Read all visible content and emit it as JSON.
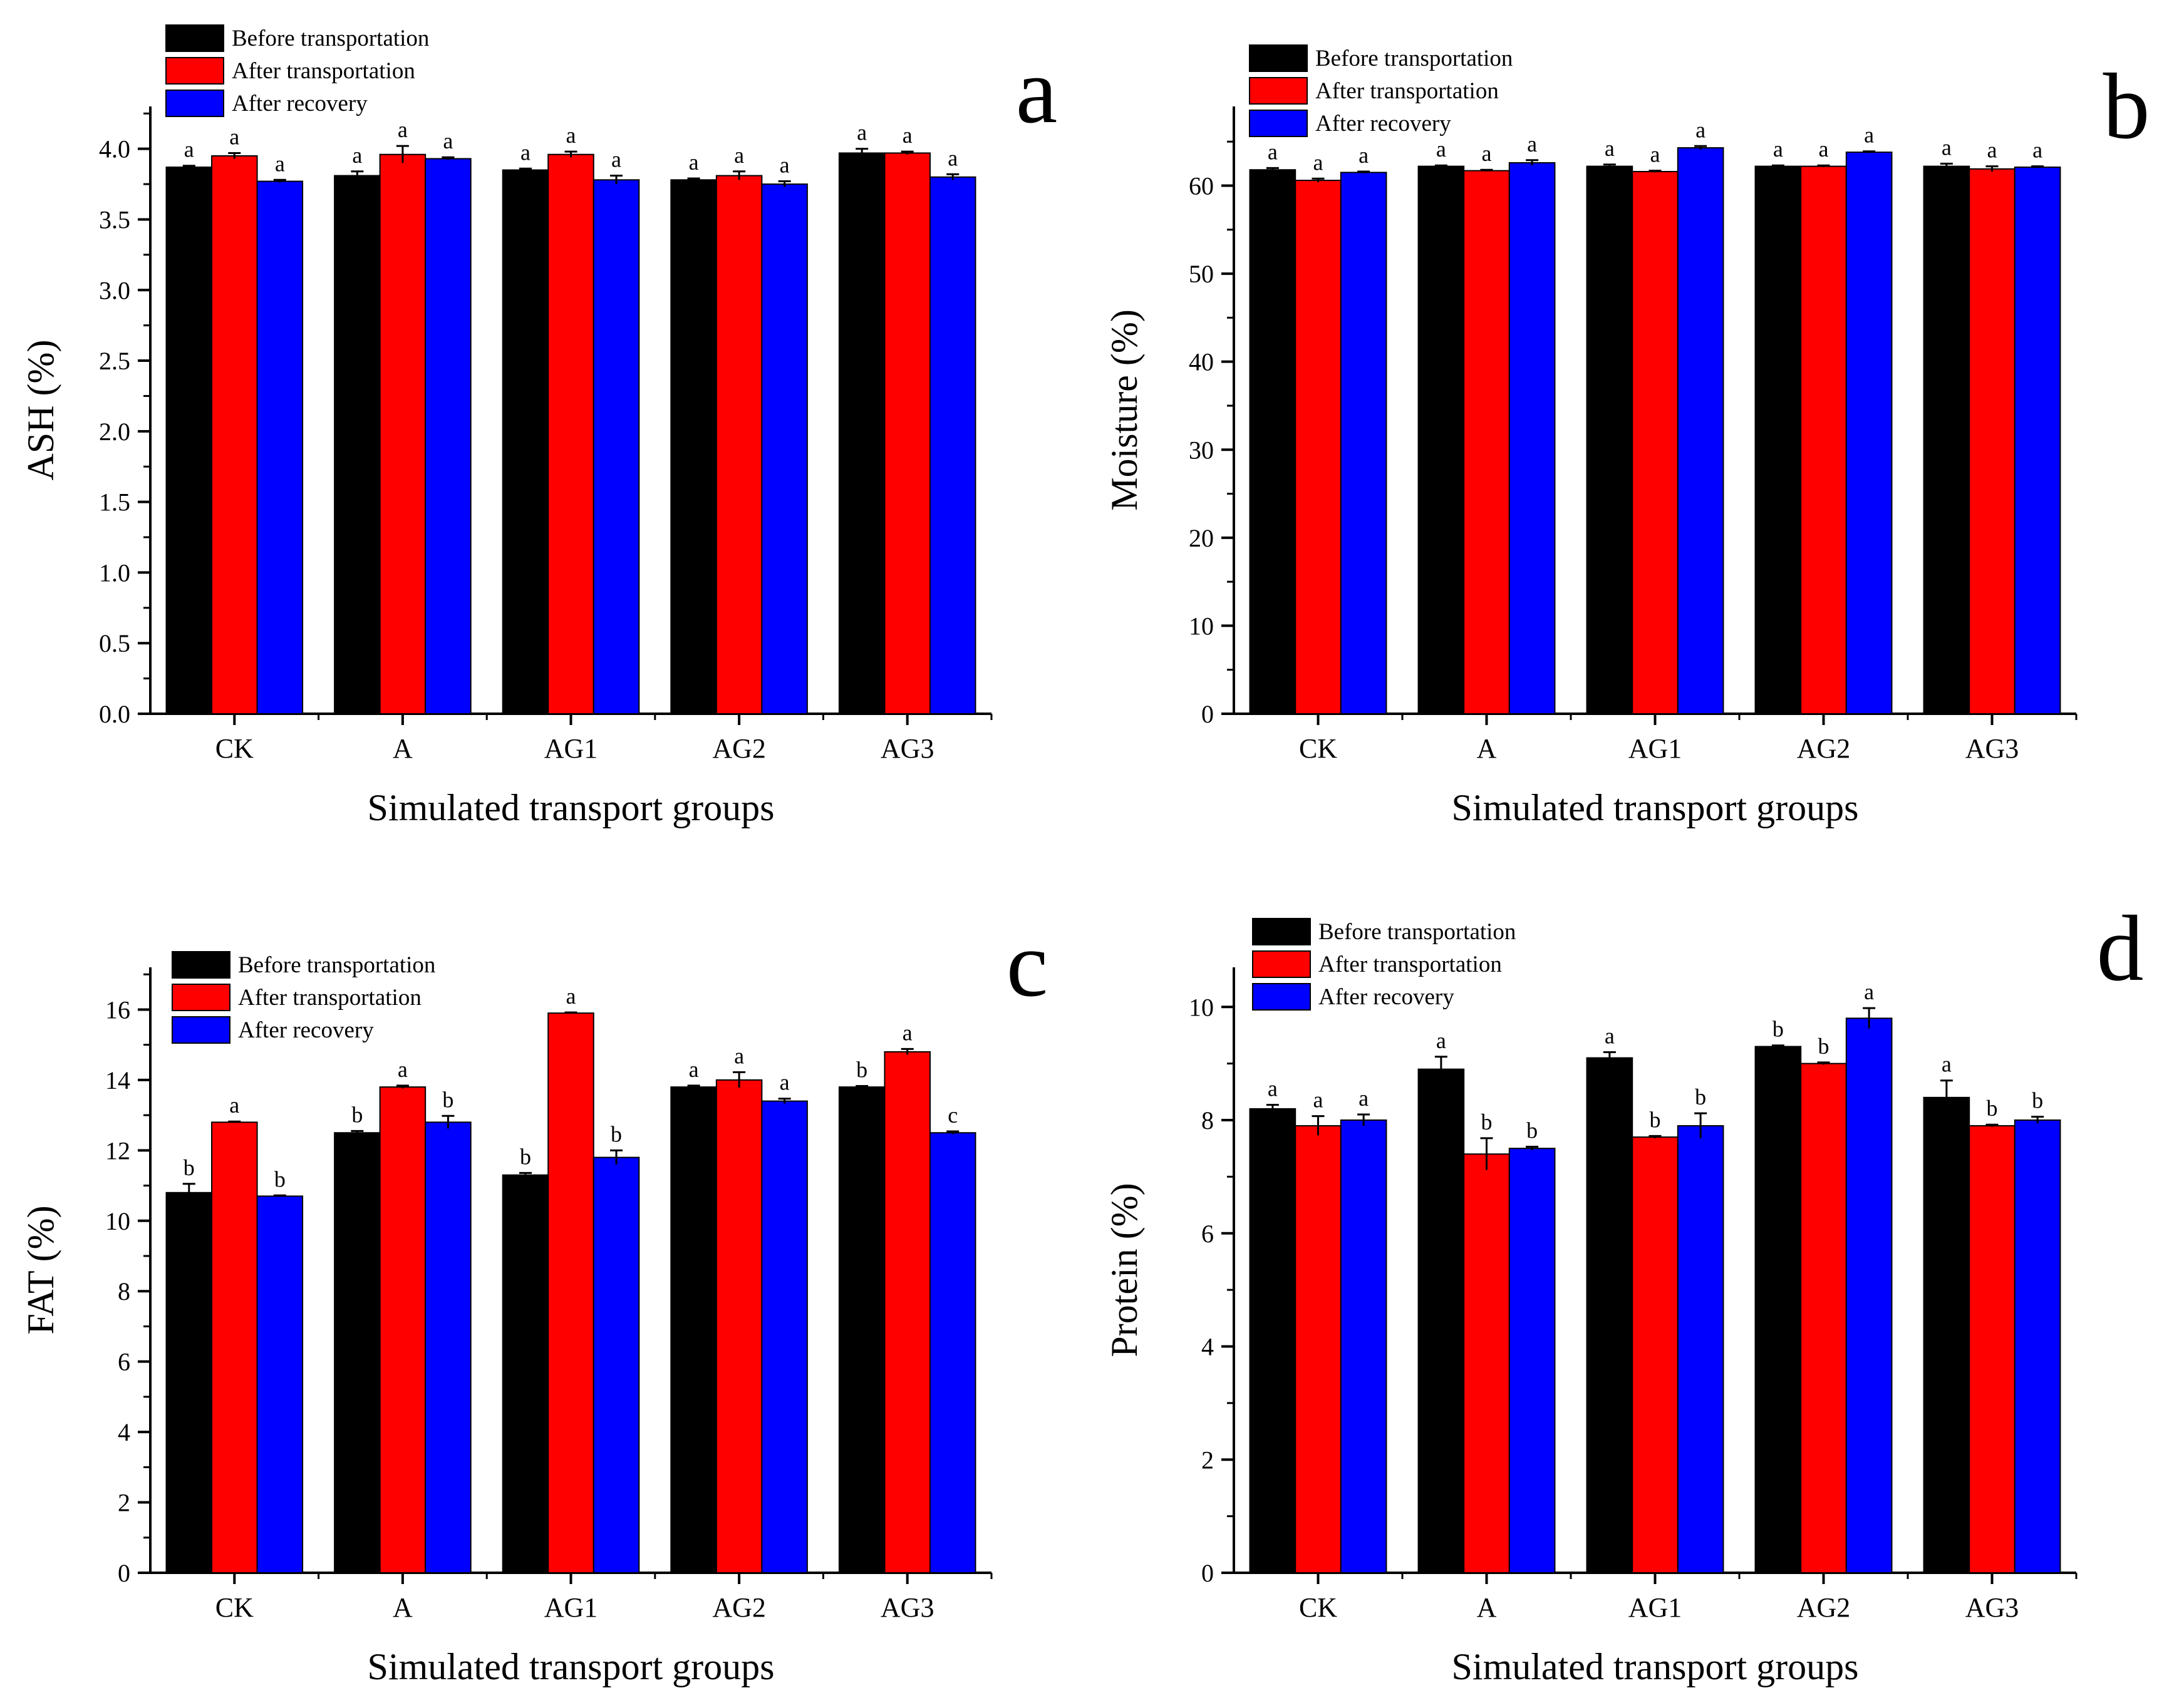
{
  "series_colors": [
    "#000000",
    "#ff0000",
    "#0000ff"
  ],
  "chart_data": [
    {
      "panel": "a",
      "type": "bar",
      "xlabel": "Simulated transport groups",
      "ylabel": "ASH (%)",
      "ylim": [
        0,
        4.3
      ],
      "yticks": [
        0.0,
        0.5,
        1.0,
        1.5,
        2.0,
        2.5,
        3.0,
        3.5,
        4.0
      ],
      "ytick_labels": [
        "0.0",
        "0.5",
        "1.0",
        "1.5",
        "2.0",
        "2.5",
        "3.0",
        "3.5",
        "4.0"
      ],
      "legend_position": "top-left",
      "categories": [
        "CK",
        "A",
        "AG1",
        "AG2",
        "AG3"
      ],
      "series": [
        {
          "name": "Before transportation",
          "values": [
            3.87,
            3.81,
            3.85,
            3.78,
            3.97
          ],
          "errors": [
            0.01,
            0.03,
            0.01,
            0.01,
            0.03
          ],
          "labels": [
            "a",
            "a",
            "a",
            "a",
            "a"
          ]
        },
        {
          "name": "After transportation",
          "values": [
            3.95,
            3.96,
            3.96,
            3.81,
            3.97
          ],
          "errors": [
            0.02,
            0.06,
            0.02,
            0.03,
            0.01
          ],
          "labels": [
            "a",
            "a",
            "a",
            "a",
            "a"
          ]
        },
        {
          "name": "After recovery",
          "values": [
            3.77,
            3.93,
            3.78,
            3.75,
            3.8
          ],
          "errors": [
            0.01,
            0.01,
            0.03,
            0.02,
            0.02
          ],
          "labels": [
            "a",
            "a",
            "a",
            "a",
            "a"
          ]
        }
      ]
    },
    {
      "panel": "b",
      "type": "bar",
      "xlabel": "Simulated transport groups",
      "ylabel": "Moisture (%)",
      "ylim": [
        0,
        69
      ],
      "yticks": [
        0,
        10,
        20,
        30,
        40,
        50,
        60
      ],
      "ytick_labels": [
        "0",
        "10",
        "20",
        "30",
        "40",
        "50",
        "60"
      ],
      "legend_position": "top-left",
      "categories": [
        "CK",
        "A",
        "AG1",
        "AG2",
        "AG3"
      ],
      "series": [
        {
          "name": "Before transportation",
          "values": [
            61.8,
            62.2,
            62.2,
            62.2,
            62.2
          ],
          "errors": [
            0.2,
            0.1,
            0.2,
            0.1,
            0.3
          ],
          "labels": [
            "a",
            "a",
            "a",
            "a",
            "a"
          ]
        },
        {
          "name": "After transportation",
          "values": [
            60.6,
            61.7,
            61.6,
            62.2,
            61.9
          ],
          "errors": [
            0.2,
            0.1,
            0.1,
            0.1,
            0.3
          ],
          "labels": [
            "a",
            "a",
            "a",
            "a",
            "a"
          ]
        },
        {
          "name": "After recovery",
          "values": [
            61.5,
            62.6,
            64.3,
            63.8,
            62.1
          ],
          "errors": [
            0.1,
            0.3,
            0.2,
            0.1,
            0.1
          ],
          "labels": [
            "a",
            "a",
            "a",
            "a",
            "a"
          ]
        }
      ]
    },
    {
      "panel": "c",
      "type": "bar",
      "xlabel": "Simulated transport groups",
      "ylabel": "FAT (%)",
      "ylim": [
        0,
        17.2
      ],
      "yticks": [
        0,
        2,
        4,
        6,
        8,
        10,
        12,
        14,
        16
      ],
      "ytick_labels": [
        "0",
        "2",
        "4",
        "6",
        "8",
        "10",
        "12",
        "14",
        "16"
      ],
      "legend_position": "top-left",
      "categories": [
        "CK",
        "A",
        "AG1",
        "AG2",
        "AG3"
      ],
      "series": [
        {
          "name": "Before transportation",
          "values": [
            10.8,
            12.5,
            11.3,
            13.8,
            13.8
          ],
          "errors": [
            0.25,
            0.05,
            0.06,
            0.04,
            0.03
          ],
          "labels": [
            "b",
            "b",
            "b",
            "a",
            "b"
          ]
        },
        {
          "name": "After transportation",
          "values": [
            12.8,
            13.8,
            15.9,
            14.0,
            14.8
          ],
          "errors": [
            0.02,
            0.04,
            0.02,
            0.22,
            0.08
          ],
          "labels": [
            "a",
            "a",
            "a",
            "a",
            "a"
          ]
        },
        {
          "name": "After recovery",
          "values": [
            10.7,
            12.8,
            11.8,
            13.4,
            12.5
          ],
          "errors": [
            0.02,
            0.18,
            0.2,
            0.07,
            0.04
          ],
          "labels": [
            "b",
            "b",
            "b",
            "a",
            "c"
          ]
        }
      ]
    },
    {
      "panel": "d",
      "type": "bar",
      "xlabel": "Simulated transport groups",
      "ylabel": "Protein (%)",
      "ylim": [
        0,
        10.7
      ],
      "yticks": [
        0,
        2,
        4,
        6,
        8,
        10
      ],
      "ytick_labels": [
        "0",
        "2",
        "4",
        "6",
        "8",
        "10"
      ],
      "legend_position": "top-left",
      "categories": [
        "CK",
        "A",
        "AG1",
        "AG2",
        "AG3"
      ],
      "series": [
        {
          "name": "Before transportation",
          "values": [
            8.2,
            8.9,
            9.1,
            9.3,
            8.4
          ],
          "errors": [
            0.07,
            0.22,
            0.1,
            0.02,
            0.3
          ],
          "labels": [
            "a",
            "a",
            "a",
            "b",
            "a"
          ]
        },
        {
          "name": "After transportation",
          "values": [
            7.9,
            7.4,
            7.7,
            9.0,
            7.9
          ],
          "errors": [
            0.17,
            0.28,
            0.02,
            0.02,
            0.02
          ],
          "labels": [
            "a",
            "b",
            "b",
            "b",
            "b"
          ]
        },
        {
          "name": "After recovery",
          "values": [
            8.0,
            7.5,
            7.9,
            9.8,
            8.0
          ],
          "errors": [
            0.1,
            0.03,
            0.22,
            0.18,
            0.06
          ],
          "labels": [
            "a",
            "b",
            "b",
            "a",
            "b"
          ]
        }
      ]
    }
  ]
}
